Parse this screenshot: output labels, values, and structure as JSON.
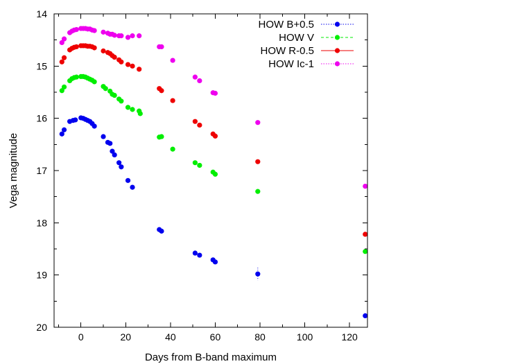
{
  "chart_data": {
    "type": "scatter",
    "title": "",
    "xlabel": "Days from B-band maximum",
    "ylabel": "Vega magnitude",
    "xlim": [
      -12,
      128
    ],
    "ylim": [
      14,
      20
    ],
    "y_inverted": true,
    "xticks": [
      0,
      20,
      40,
      60,
      80,
      100,
      120
    ],
    "yticks": [
      14,
      15,
      16,
      17,
      18,
      19,
      20
    ],
    "legend_position": "top-right",
    "grid": false,
    "series": [
      {
        "name": "HOW B+0.5",
        "color": "#0000ee",
        "line_style": "dotted",
        "points": [
          [
            -8.5,
            16.3
          ],
          [
            -7.5,
            16.22
          ],
          [
            -5,
            16.06
          ],
          [
            -3.5,
            16.04
          ],
          [
            -2.5,
            16.03
          ],
          [
            0,
            15.99
          ],
          [
            1,
            16.0
          ],
          [
            2,
            16.02
          ],
          [
            3,
            16.04
          ],
          [
            4,
            16.06
          ],
          [
            5,
            16.1
          ],
          [
            6,
            16.15
          ],
          [
            10,
            16.35
          ],
          [
            12,
            16.46
          ],
          [
            13,
            16.48
          ],
          [
            14,
            16.63
          ],
          [
            15,
            16.7
          ],
          [
            17,
            16.85
          ],
          [
            18,
            16.93
          ],
          [
            21,
            17.19
          ],
          [
            23,
            17.32
          ],
          [
            35,
            18.13
          ],
          [
            36,
            18.16
          ],
          [
            51,
            18.58
          ],
          [
            53,
            18.62
          ],
          [
            59,
            18.71
          ],
          [
            60,
            18.75
          ],
          [
            79,
            18.98
          ],
          [
            127,
            19.78
          ]
        ],
        "errors": {
          "79": 0.12,
          "127": 0.05
        }
      },
      {
        "name": "HOW V",
        "color": "#00ee00",
        "line_style": "dashed",
        "points": [
          [
            -8.5,
            15.47
          ],
          [
            -7.5,
            15.4
          ],
          [
            -5,
            15.28
          ],
          [
            -4,
            15.24
          ],
          [
            -3,
            15.22
          ],
          [
            -2,
            15.21
          ],
          [
            0,
            15.2
          ],
          [
            1,
            15.2
          ],
          [
            2,
            15.21
          ],
          [
            3,
            15.23
          ],
          [
            4,
            15.25
          ],
          [
            5,
            15.27
          ],
          [
            6,
            15.3
          ],
          [
            10,
            15.39
          ],
          [
            11,
            15.43
          ],
          [
            13,
            15.48
          ],
          [
            14,
            15.54
          ],
          [
            15,
            15.56
          ],
          [
            17,
            15.63
          ],
          [
            18,
            15.67
          ],
          [
            21,
            15.79
          ],
          [
            23,
            15.83
          ],
          [
            26,
            15.86
          ],
          [
            26.5,
            15.91
          ],
          [
            35,
            16.36
          ],
          [
            36,
            16.35
          ],
          [
            41,
            16.59
          ],
          [
            51,
            16.85
          ],
          [
            53,
            16.9
          ],
          [
            59,
            17.03
          ],
          [
            60,
            17.07
          ],
          [
            79,
            17.4
          ],
          [
            127,
            18.55
          ]
        ],
        "errors": {}
      },
      {
        "name": "HOW R-0.5",
        "color": "#ee0000",
        "line_style": "solid",
        "points": [
          [
            -8.5,
            14.92
          ],
          [
            -7.5,
            14.84
          ],
          [
            -5,
            14.69
          ],
          [
            -4,
            14.66
          ],
          [
            -3,
            14.64
          ],
          [
            -2,
            14.63
          ],
          [
            0,
            14.61
          ],
          [
            1,
            14.61
          ],
          [
            2,
            14.61
          ],
          [
            3,
            14.62
          ],
          [
            4,
            14.62
          ],
          [
            5,
            14.63
          ],
          [
            6,
            14.65
          ],
          [
            10,
            14.71
          ],
          [
            12,
            14.74
          ],
          [
            13,
            14.76
          ],
          [
            14,
            14.8
          ],
          [
            15,
            14.83
          ],
          [
            17,
            14.88
          ],
          [
            18,
            14.92
          ],
          [
            21,
            14.97
          ],
          [
            23,
            15.0
          ],
          [
            26,
            15.06
          ],
          [
            35,
            15.43
          ],
          [
            36,
            15.47
          ],
          [
            41,
            15.66
          ],
          [
            51,
            16.06
          ],
          [
            53,
            16.13
          ],
          [
            59,
            16.3
          ],
          [
            60,
            16.34
          ],
          [
            79,
            16.83
          ],
          [
            127,
            18.22
          ]
        ],
        "errors": {}
      },
      {
        "name": "HOW Ic-1",
        "color": "#ee00ee",
        "line_style": "dotted",
        "points": [
          [
            -8.5,
            14.55
          ],
          [
            -7.5,
            14.48
          ],
          [
            -5,
            14.36
          ],
          [
            -4,
            14.33
          ],
          [
            -3,
            14.31
          ],
          [
            -2,
            14.3
          ],
          [
            0,
            14.28
          ],
          [
            1,
            14.28
          ],
          [
            2,
            14.28
          ],
          [
            3,
            14.29
          ],
          [
            4,
            14.29
          ],
          [
            5,
            14.31
          ],
          [
            6,
            14.32
          ],
          [
            10,
            14.35
          ],
          [
            12,
            14.37
          ],
          [
            13,
            14.39
          ],
          [
            14,
            14.39
          ],
          [
            15,
            14.41
          ],
          [
            17,
            14.42
          ],
          [
            18,
            14.42
          ],
          [
            21,
            14.45
          ],
          [
            23,
            14.42
          ],
          [
            26,
            14.42
          ],
          [
            35,
            14.63
          ],
          [
            36,
            14.63
          ],
          [
            41,
            14.89
          ],
          [
            51,
            15.21
          ],
          [
            53,
            15.28
          ],
          [
            59,
            15.51
          ],
          [
            60,
            15.52
          ],
          [
            79,
            16.08
          ],
          [
            127,
            17.3
          ]
        ],
        "errors": {}
      }
    ]
  }
}
